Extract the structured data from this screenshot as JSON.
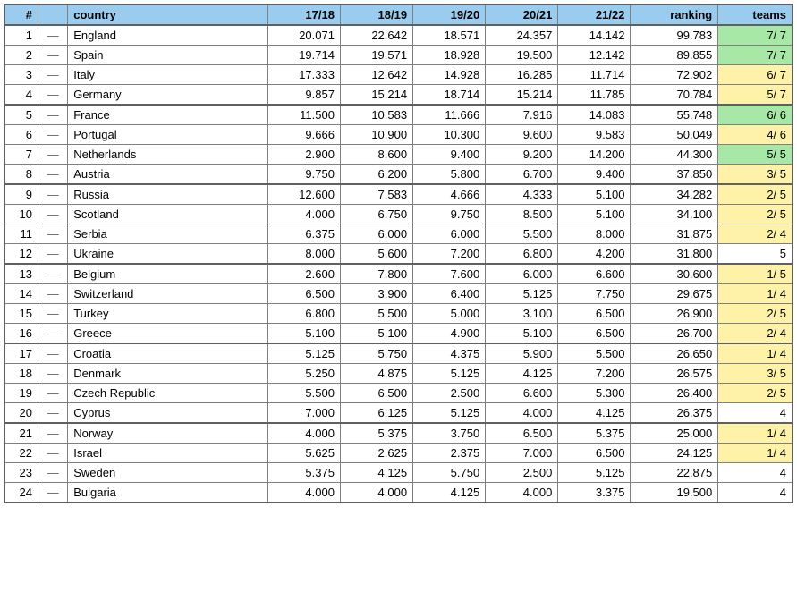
{
  "table": {
    "headers": {
      "index": "#",
      "move": "",
      "country": "country",
      "s1": "17/18",
      "s2": "18/19",
      "s3": "19/20",
      "s4": "20/21",
      "s5": "21/22",
      "ranking": "ranking",
      "teams": "teams"
    },
    "colors": {
      "header_bg": "#99ccee",
      "border": "#808080",
      "sep_border": "#606060",
      "teams_green": "#a7e8a7",
      "teams_yellow": "#fdf2a8",
      "teams_plain": "#ffffff"
    },
    "group_separator_every": 4,
    "rows": [
      {
        "idx": 1,
        "move": "—",
        "country": "England",
        "s1": "20.071",
        "s2": "22.642",
        "s3": "18.571",
        "s4": "24.357",
        "s5": "14.142",
        "ranking": "99.783",
        "teams": "7/ 7",
        "teams_class": "green"
      },
      {
        "idx": 2,
        "move": "—",
        "country": "Spain",
        "s1": "19.714",
        "s2": "19.571",
        "s3": "18.928",
        "s4": "19.500",
        "s5": "12.142",
        "ranking": "89.855",
        "teams": "7/ 7",
        "teams_class": "green"
      },
      {
        "idx": 3,
        "move": "—",
        "country": "Italy",
        "s1": "17.333",
        "s2": "12.642",
        "s3": "14.928",
        "s4": "16.285",
        "s5": "11.714",
        "ranking": "72.902",
        "teams": "6/ 7",
        "teams_class": "yellow"
      },
      {
        "idx": 4,
        "move": "—",
        "country": "Germany",
        "s1": "9.857",
        "s2": "15.214",
        "s3": "18.714",
        "s4": "15.214",
        "s5": "11.785",
        "ranking": "70.784",
        "teams": "5/ 7",
        "teams_class": "yellow"
      },
      {
        "idx": 5,
        "move": "—",
        "country": "France",
        "s1": "11.500",
        "s2": "10.583",
        "s3": "11.666",
        "s4": "7.916",
        "s5": "14.083",
        "ranking": "55.748",
        "teams": "6/ 6",
        "teams_class": "green"
      },
      {
        "idx": 6,
        "move": "—",
        "country": "Portugal",
        "s1": "9.666",
        "s2": "10.900",
        "s3": "10.300",
        "s4": "9.600",
        "s5": "9.583",
        "ranking": "50.049",
        "teams": "4/ 6",
        "teams_class": "yellow"
      },
      {
        "idx": 7,
        "move": "—",
        "country": "Netherlands",
        "s1": "2.900",
        "s2": "8.600",
        "s3": "9.400",
        "s4": "9.200",
        "s5": "14.200",
        "ranking": "44.300",
        "teams": "5/ 5",
        "teams_class": "green"
      },
      {
        "idx": 8,
        "move": "—",
        "country": "Austria",
        "s1": "9.750",
        "s2": "6.200",
        "s3": "5.800",
        "s4": "6.700",
        "s5": "9.400",
        "ranking": "37.850",
        "teams": "3/ 5",
        "teams_class": "yellow"
      },
      {
        "idx": 9,
        "move": "—",
        "country": "Russia",
        "s1": "12.600",
        "s2": "7.583",
        "s3": "4.666",
        "s4": "4.333",
        "s5": "5.100",
        "ranking": "34.282",
        "teams": "2/ 5",
        "teams_class": "yellow"
      },
      {
        "idx": 10,
        "move": "—",
        "country": "Scotland",
        "s1": "4.000",
        "s2": "6.750",
        "s3": "9.750",
        "s4": "8.500",
        "s5": "5.100",
        "ranking": "34.100",
        "teams": "2/ 5",
        "teams_class": "yellow"
      },
      {
        "idx": 11,
        "move": "—",
        "country": "Serbia",
        "s1": "6.375",
        "s2": "6.000",
        "s3": "6.000",
        "s4": "5.500",
        "s5": "8.000",
        "ranking": "31.875",
        "teams": "2/ 4",
        "teams_class": "yellow"
      },
      {
        "idx": 12,
        "move": "—",
        "country": "Ukraine",
        "s1": "8.000",
        "s2": "5.600",
        "s3": "7.200",
        "s4": "6.800",
        "s5": "4.200",
        "ranking": "31.800",
        "teams": "5",
        "teams_class": "plain"
      },
      {
        "idx": 13,
        "move": "—",
        "country": "Belgium",
        "s1": "2.600",
        "s2": "7.800",
        "s3": "7.600",
        "s4": "6.000",
        "s5": "6.600",
        "ranking": "30.600",
        "teams": "1/ 5",
        "teams_class": "yellow"
      },
      {
        "idx": 14,
        "move": "—",
        "country": "Switzerland",
        "s1": "6.500",
        "s2": "3.900",
        "s3": "6.400",
        "s4": "5.125",
        "s5": "7.750",
        "ranking": "29.675",
        "teams": "1/ 4",
        "teams_class": "yellow"
      },
      {
        "idx": 15,
        "move": "—",
        "country": "Turkey",
        "s1": "6.800",
        "s2": "5.500",
        "s3": "5.000",
        "s4": "3.100",
        "s5": "6.500",
        "ranking": "26.900",
        "teams": "2/ 5",
        "teams_class": "yellow"
      },
      {
        "idx": 16,
        "move": "—",
        "country": "Greece",
        "s1": "5.100",
        "s2": "5.100",
        "s3": "4.900",
        "s4": "5.100",
        "s5": "6.500",
        "ranking": "26.700",
        "teams": "2/ 4",
        "teams_class": "yellow"
      },
      {
        "idx": 17,
        "move": "—",
        "country": "Croatia",
        "s1": "5.125",
        "s2": "5.750",
        "s3": "4.375",
        "s4": "5.900",
        "s5": "5.500",
        "ranking": "26.650",
        "teams": "1/ 4",
        "teams_class": "yellow"
      },
      {
        "idx": 18,
        "move": "—",
        "country": "Denmark",
        "s1": "5.250",
        "s2": "4.875",
        "s3": "5.125",
        "s4": "4.125",
        "s5": "7.200",
        "ranking": "26.575",
        "teams": "3/ 5",
        "teams_class": "yellow"
      },
      {
        "idx": 19,
        "move": "—",
        "country": "Czech Republic",
        "s1": "5.500",
        "s2": "6.500",
        "s3": "2.500",
        "s4": "6.600",
        "s5": "5.300",
        "ranking": "26.400",
        "teams": "2/ 5",
        "teams_class": "yellow"
      },
      {
        "idx": 20,
        "move": "—",
        "country": "Cyprus",
        "s1": "7.000",
        "s2": "6.125",
        "s3": "5.125",
        "s4": "4.000",
        "s5": "4.125",
        "ranking": "26.375",
        "teams": "4",
        "teams_class": "plain"
      },
      {
        "idx": 21,
        "move": "—",
        "country": "Norway",
        "s1": "4.000",
        "s2": "5.375",
        "s3": "3.750",
        "s4": "6.500",
        "s5": "5.375",
        "ranking": "25.000",
        "teams": "1/ 4",
        "teams_class": "yellow"
      },
      {
        "idx": 22,
        "move": "—",
        "country": "Israel",
        "s1": "5.625",
        "s2": "2.625",
        "s3": "2.375",
        "s4": "7.000",
        "s5": "6.500",
        "ranking": "24.125",
        "teams": "1/ 4",
        "teams_class": "yellow"
      },
      {
        "idx": 23,
        "move": "—",
        "country": "Sweden",
        "s1": "5.375",
        "s2": "4.125",
        "s3": "5.750",
        "s4": "2.500",
        "s5": "5.125",
        "ranking": "22.875",
        "teams": "4",
        "teams_class": "plain"
      },
      {
        "idx": 24,
        "move": "—",
        "country": "Bulgaria",
        "s1": "4.000",
        "s2": "4.000",
        "s3": "4.125",
        "s4": "4.000",
        "s5": "3.375",
        "ranking": "19.500",
        "teams": "4",
        "teams_class": "plain"
      }
    ]
  }
}
